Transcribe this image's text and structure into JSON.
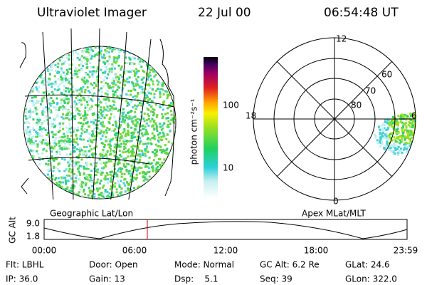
{
  "header": {
    "title": "Ultraviolet Imager",
    "date": "22 Jul 00",
    "time": "06:54:48 UT"
  },
  "colorbar": {
    "unit": "photon cm⁻²s⁻¹",
    "labels": [
      "100",
      "10"
    ]
  },
  "polar": {
    "mlt_labels": [
      "12",
      "18",
      "6",
      "0"
    ],
    "mlat_labels": [
      "60",
      "70",
      "80"
    ]
  },
  "captions": [
    "Geographic Lat/Lon",
    "Apex MLat/MLT"
  ],
  "altitude_plot": {
    "axis_label": "GC Alt",
    "y_labels": [
      "9.0",
      "1.8"
    ],
    "x_labels": [
      "00:00",
      "06:00",
      "12:00",
      "18:00",
      "23:59"
    ]
  },
  "footer": {
    "rows": [
      [
        "Flt: LBHL",
        "Door: Open",
        "Mode: Normal",
        "GC Alt: 6.2 Re",
        "GLat: 24.6"
      ],
      [
        "IP: 36.0",
        "Gain: 13",
        "Dsp:    5.1",
        "Seq: 39",
        "GLon: 322.0"
      ]
    ]
  }
}
